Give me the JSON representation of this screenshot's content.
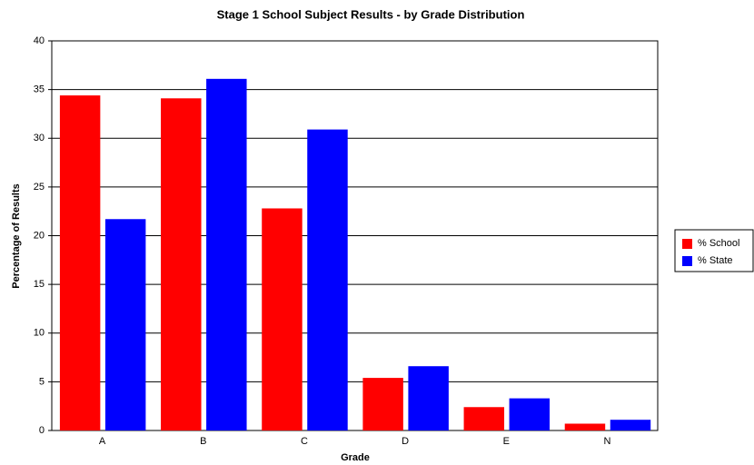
{
  "chart_data": {
    "type": "bar",
    "title": "Stage 1 School Subject Results - by Grade Distribution",
    "x_label": "Grade",
    "y_label": "Percentage of Results",
    "categories": [
      "A",
      "B",
      "C",
      "D",
      "E",
      "N"
    ],
    "series": [
      {
        "name": "% School",
        "color": "#ff0000",
        "values": [
          34.4,
          34.1,
          22.8,
          5.4,
          2.4,
          0.7
        ]
      },
      {
        "name": "% State",
        "color": "#0000ff",
        "values": [
          21.7,
          36.1,
          30.9,
          6.6,
          3.3,
          1.1
        ]
      }
    ],
    "ylim": [
      0,
      40
    ],
    "yticks": [
      0,
      5,
      10,
      15,
      20,
      25,
      30,
      35,
      40
    ],
    "grid": true,
    "legend": "right"
  }
}
